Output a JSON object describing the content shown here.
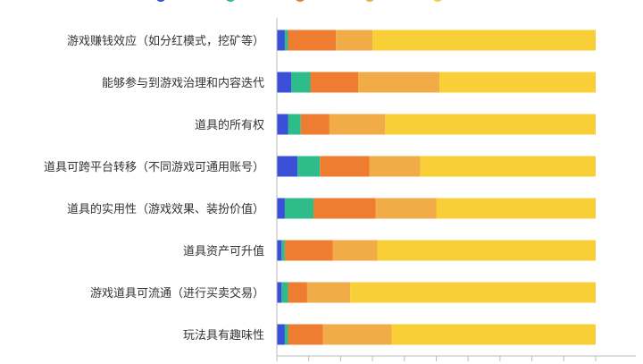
{
  "chart_data": {
    "type": "bar",
    "orientation": "horizontal",
    "stacked": true,
    "normalized": true,
    "legend_position": "top",
    "legend": {
      "visible_text": ""
    },
    "grid": false,
    "categories": [
      "游戏赚钱效应（如分红模式，挖矿等）",
      "能够参与到游戏治理和内容迭代",
      "道具的所有权",
      "道具可跨平台转移（不同游戏可通用账号）",
      "道具的实用性（游戏效果、装扮价值）",
      "道具资产可升值",
      "游戏道具可流通（进行买卖交易）",
      "玩法具有趣味性"
    ],
    "series": [
      {
        "color": "#3b4fd8",
        "values": [
          2.5,
          4.5,
          3.5,
          6.5,
          2.5,
          1.5,
          1.5,
          2.5
        ]
      },
      {
        "color": "#2ebd8a",
        "values": [
          1.0,
          6.0,
          4.0,
          7.0,
          9.0,
          1.0,
          2.0,
          1.0
        ]
      },
      {
        "color": "#ee7d31",
        "values": [
          15.0,
          15.0,
          9.0,
          15.5,
          19.5,
          15.0,
          6.0,
          11.0
        ]
      },
      {
        "color": "#f2ac47",
        "values": [
          11.5,
          25.5,
          17.5,
          16.0,
          19.0,
          14.0,
          13.5,
          21.5
        ]
      },
      {
        "color": "#f8cf36",
        "values": [
          70.0,
          49.0,
          66.0,
          55.0,
          50.0,
          68.5,
          77.0,
          64.0
        ]
      }
    ],
    "xlim": [
      0,
      100
    ],
    "ticks_visible_count": 11
  }
}
